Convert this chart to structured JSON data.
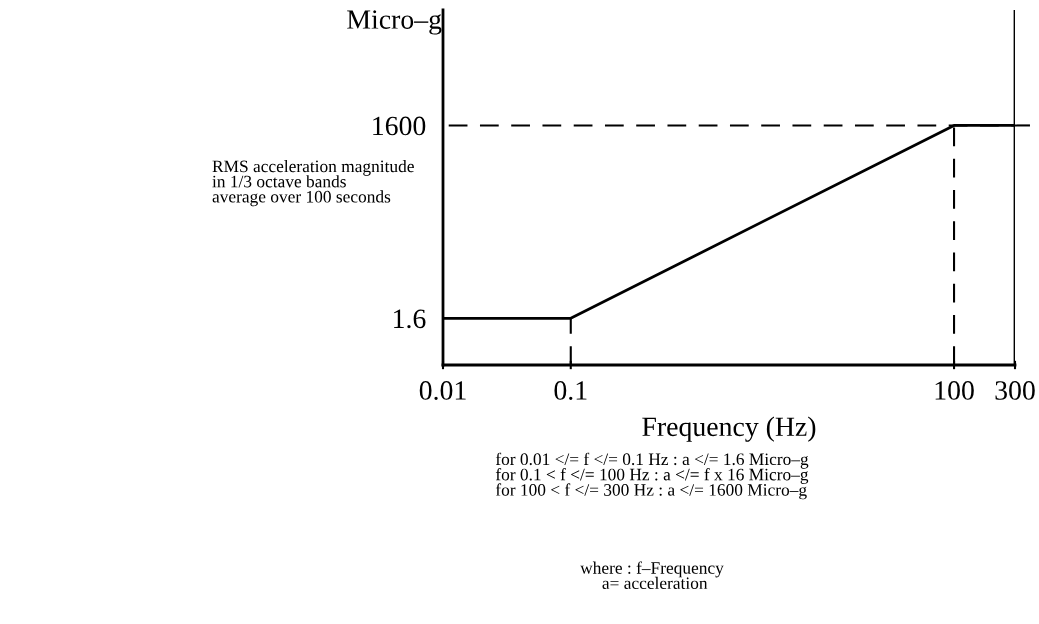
{
  "chart_data": {
    "type": "line",
    "ylabel": "Micro–g",
    "xlabel": "Frequency (Hz)",
    "log": "xy",
    "x": [
      0.01,
      0.1,
      100,
      300
    ],
    "series": [
      {
        "color": "#000000",
        "values": [
          1.6,
          1.6,
          1600,
          1600
        ]
      }
    ],
    "xlim": [
      0.01,
      300
    ],
    "xticks": [
      0.01,
      0.1,
      100,
      300
    ],
    "ylim": [
      0.3,
      100000
    ],
    "yticks": [
      1.6,
      1600
    ],
    "grid": false,
    "marker": "none",
    "line_style": "solid",
    "ref_lines": [
      {
        "axis": "y",
        "value": 1600,
        "line_style": "dashed",
        "color": "#000000"
      },
      {
        "axis": "x",
        "value": 0.1,
        "line_style": "dashed",
        "color": "#000000"
      },
      {
        "axis": "x",
        "value": 100,
        "line_style": "dashed",
        "color": "#000000"
      },
      {
        "axis": "x",
        "value": 300,
        "line_style": "solid",
        "color": "#000000"
      }
    ],
    "annotations": [
      "RMS acceleration magnitude\nin 1/3 octave bands\naverage over 100 seconds",
      "for 0.01 </= f </= 0.1 Hz : a </= 1.6 Micro–g\nfor 0.1 < f </= 100 Hz : a </= f x 16 Micro–g\nfor 100 < f </= 300 Hz : a </= 1600 Micro–g",
      "where : f–Frequency\n     a= acceleration"
    ]
  }
}
